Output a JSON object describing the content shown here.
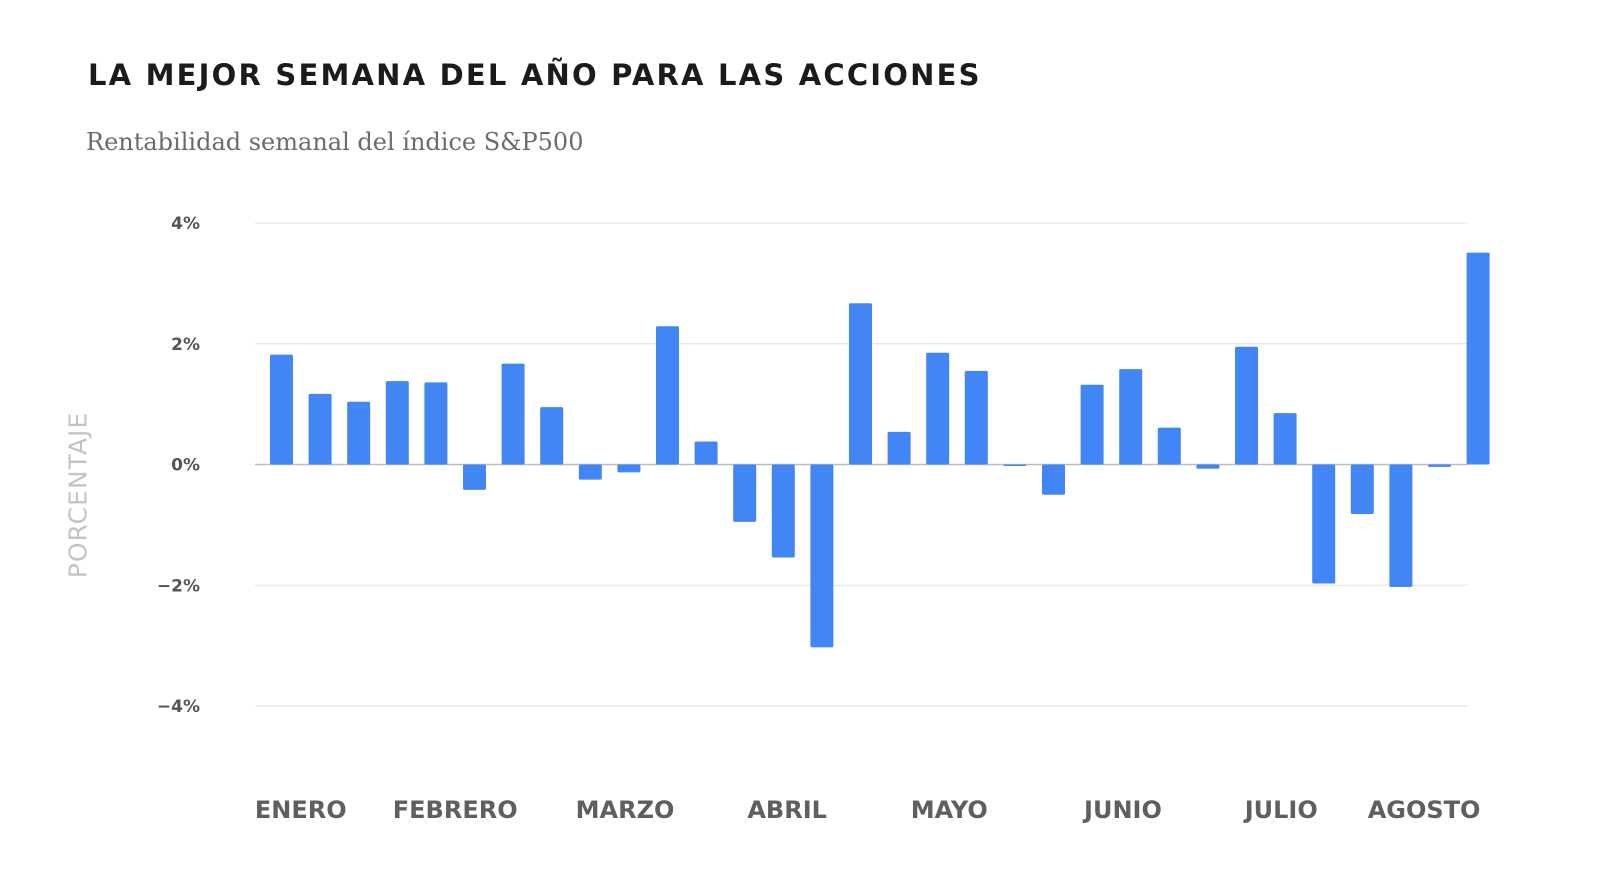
{
  "header": {
    "title": "LA MEJOR SEMANA DEL AÑO PARA LAS ACCIONES",
    "subtitle": "Rentabilidad semanal del índice S&P500"
  },
  "colors": {
    "bar": "#4285f4",
    "grid": "#e6e6e6",
    "zero_line": "#bdbdbd"
  },
  "chart_data": {
    "type": "bar",
    "title": "LA MEJOR SEMANA DEL AÑO PARA LAS ACCIONES",
    "subtitle": "Rentabilidad semanal del índice S&P500",
    "ylabel": "PORCENTAJE",
    "xlabel": "",
    "ylim": [
      -4,
      4
    ],
    "yticks": [
      {
        "value": 4,
        "label": "4%"
      },
      {
        "value": 2,
        "label": "2%"
      },
      {
        "value": 0,
        "label": "0%"
      },
      {
        "value": -2,
        "label": "−2%"
      },
      {
        "value": -4,
        "label": "−4%"
      }
    ],
    "grid": true,
    "month_labels": [
      {
        "label": "ENERO",
        "week_index": 0.5
      },
      {
        "label": "FEBRERO",
        "week_index": 4.5
      },
      {
        "label": "MARZO",
        "week_index": 8.9
      },
      {
        "label": "ABRIL",
        "week_index": 13.1
      },
      {
        "label": "MAYO",
        "week_index": 17.3
      },
      {
        "label": "JUNIO",
        "week_index": 21.8
      },
      {
        "label": "JULIO",
        "week_index": 25.9
      },
      {
        "label": "AGOSTO",
        "week_index": 29.6
      }
    ],
    "values": [
      1.82,
      1.17,
      1.04,
      1.38,
      1.36,
      -0.42,
      1.67,
      0.95,
      -0.25,
      -0.13,
      2.29,
      0.38,
      -0.95,
      -1.54,
      -3.03,
      2.67,
      0.54,
      1.85,
      1.55,
      -0.02,
      -0.5,
      1.32,
      1.58,
      0.61,
      -0.07,
      1.95,
      0.85,
      -1.97,
      -0.82,
      -2.03,
      -0.04,
      3.51
    ]
  }
}
